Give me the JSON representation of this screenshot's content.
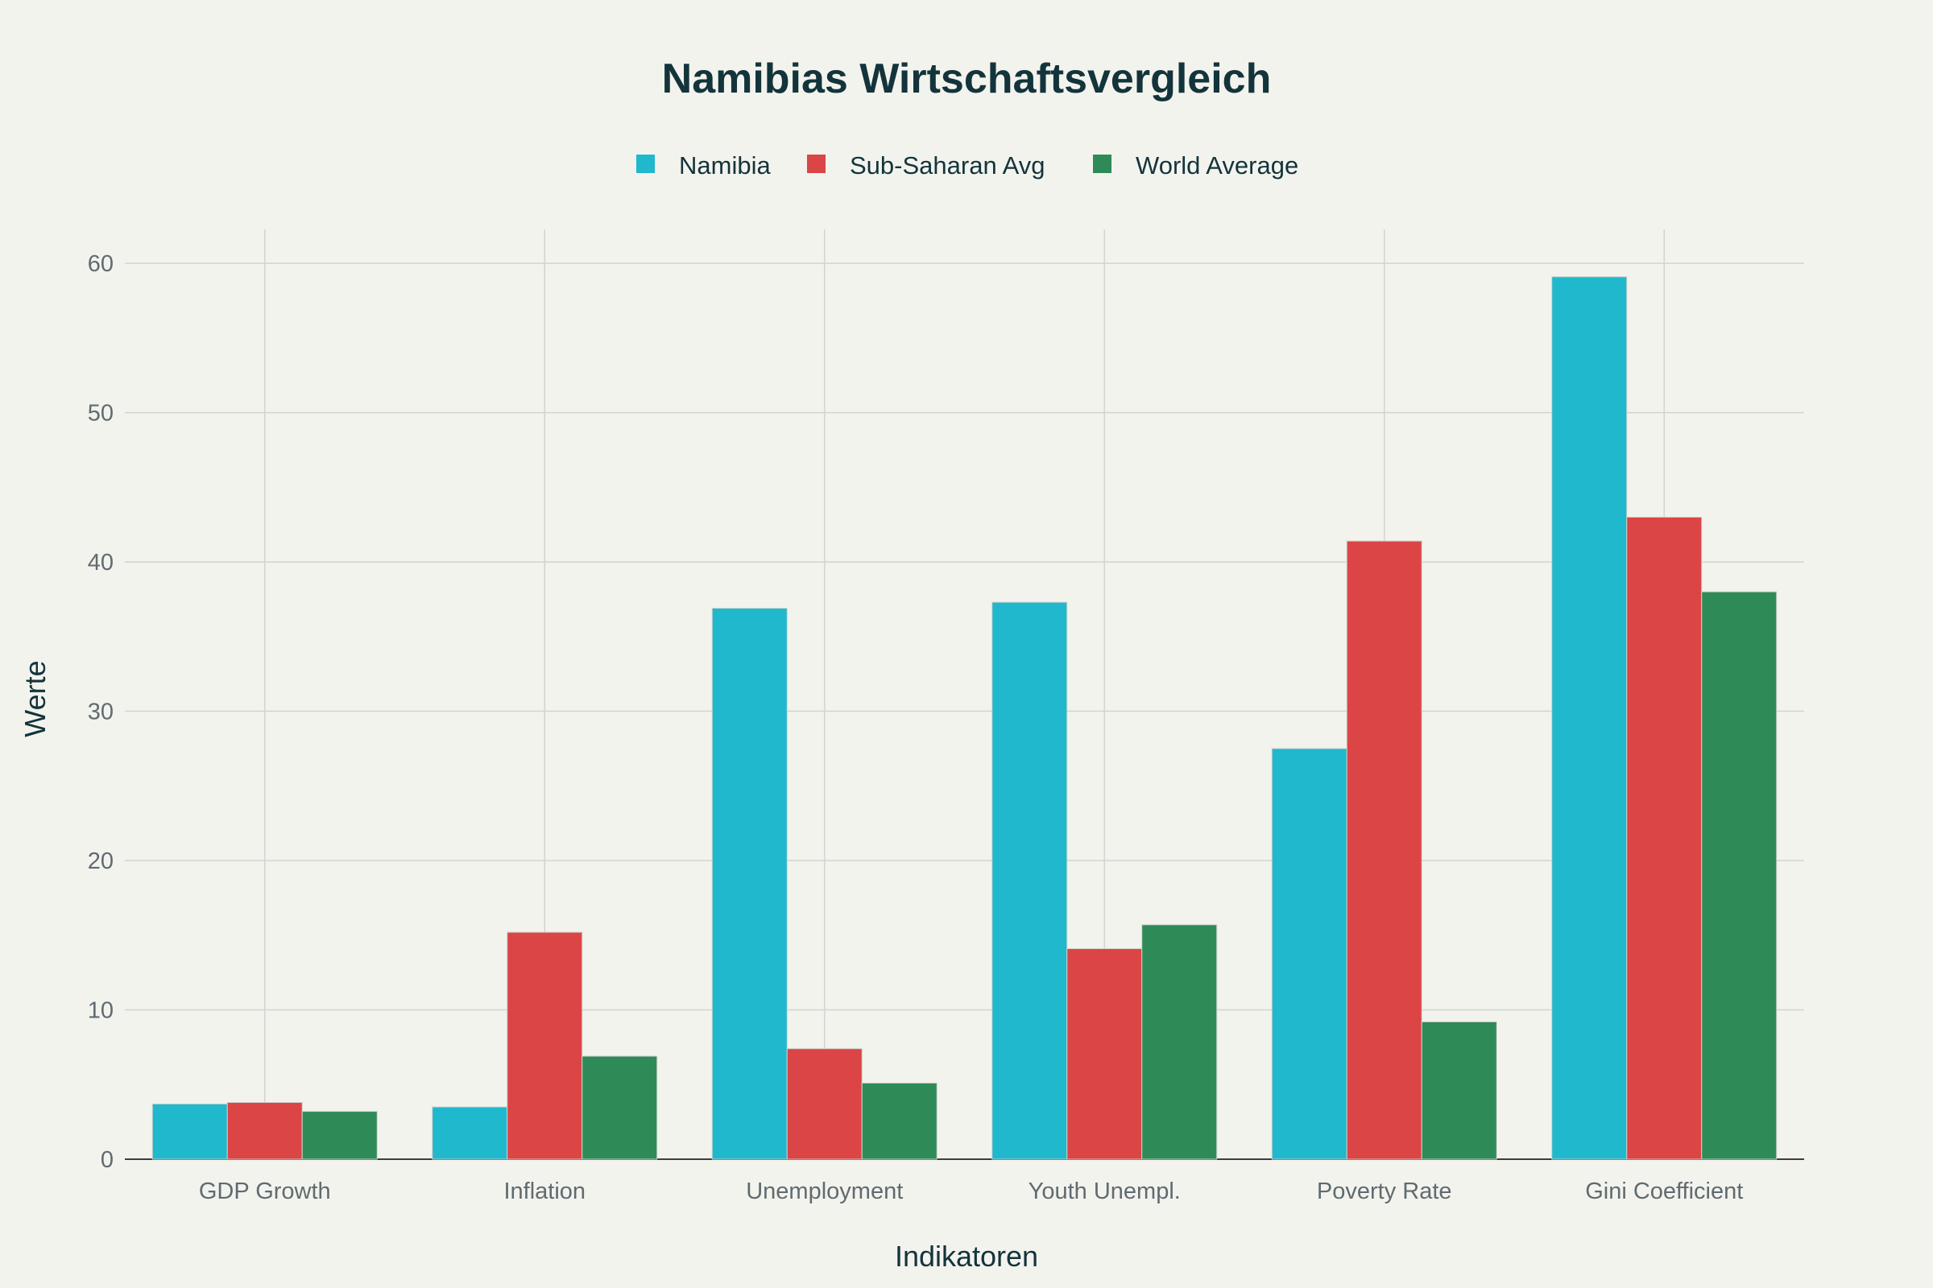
{
  "chart_data": {
    "type": "bar",
    "title": "Namibias Wirtschaftsvergleich",
    "xlabel": "Indikatoren",
    "ylabel": "Werte",
    "ylim": [
      0,
      62
    ],
    "yticks": [
      0,
      10,
      20,
      30,
      40,
      50,
      60
    ],
    "grid": true,
    "legend_position": "top-center",
    "categories": [
      "GDP Growth",
      "Inflation",
      "Unemployment",
      "Youth Unempl.",
      "Poverty Rate",
      "Gini Coefficient"
    ],
    "series": [
      {
        "name": "Namibia",
        "color": "#1fb8cd",
        "values": [
          3.7,
          3.5,
          36.9,
          37.3,
          27.5,
          59.1
        ]
      },
      {
        "name": "Sub-Saharan Avg",
        "color": "#db4545",
        "values": [
          3.8,
          15.2,
          7.4,
          14.1,
          41.4,
          43.0
        ]
      },
      {
        "name": "World Average",
        "color": "#2e8b57",
        "values": [
          3.2,
          6.9,
          5.1,
          15.7,
          9.2,
          38.0
        ]
      }
    ]
  }
}
